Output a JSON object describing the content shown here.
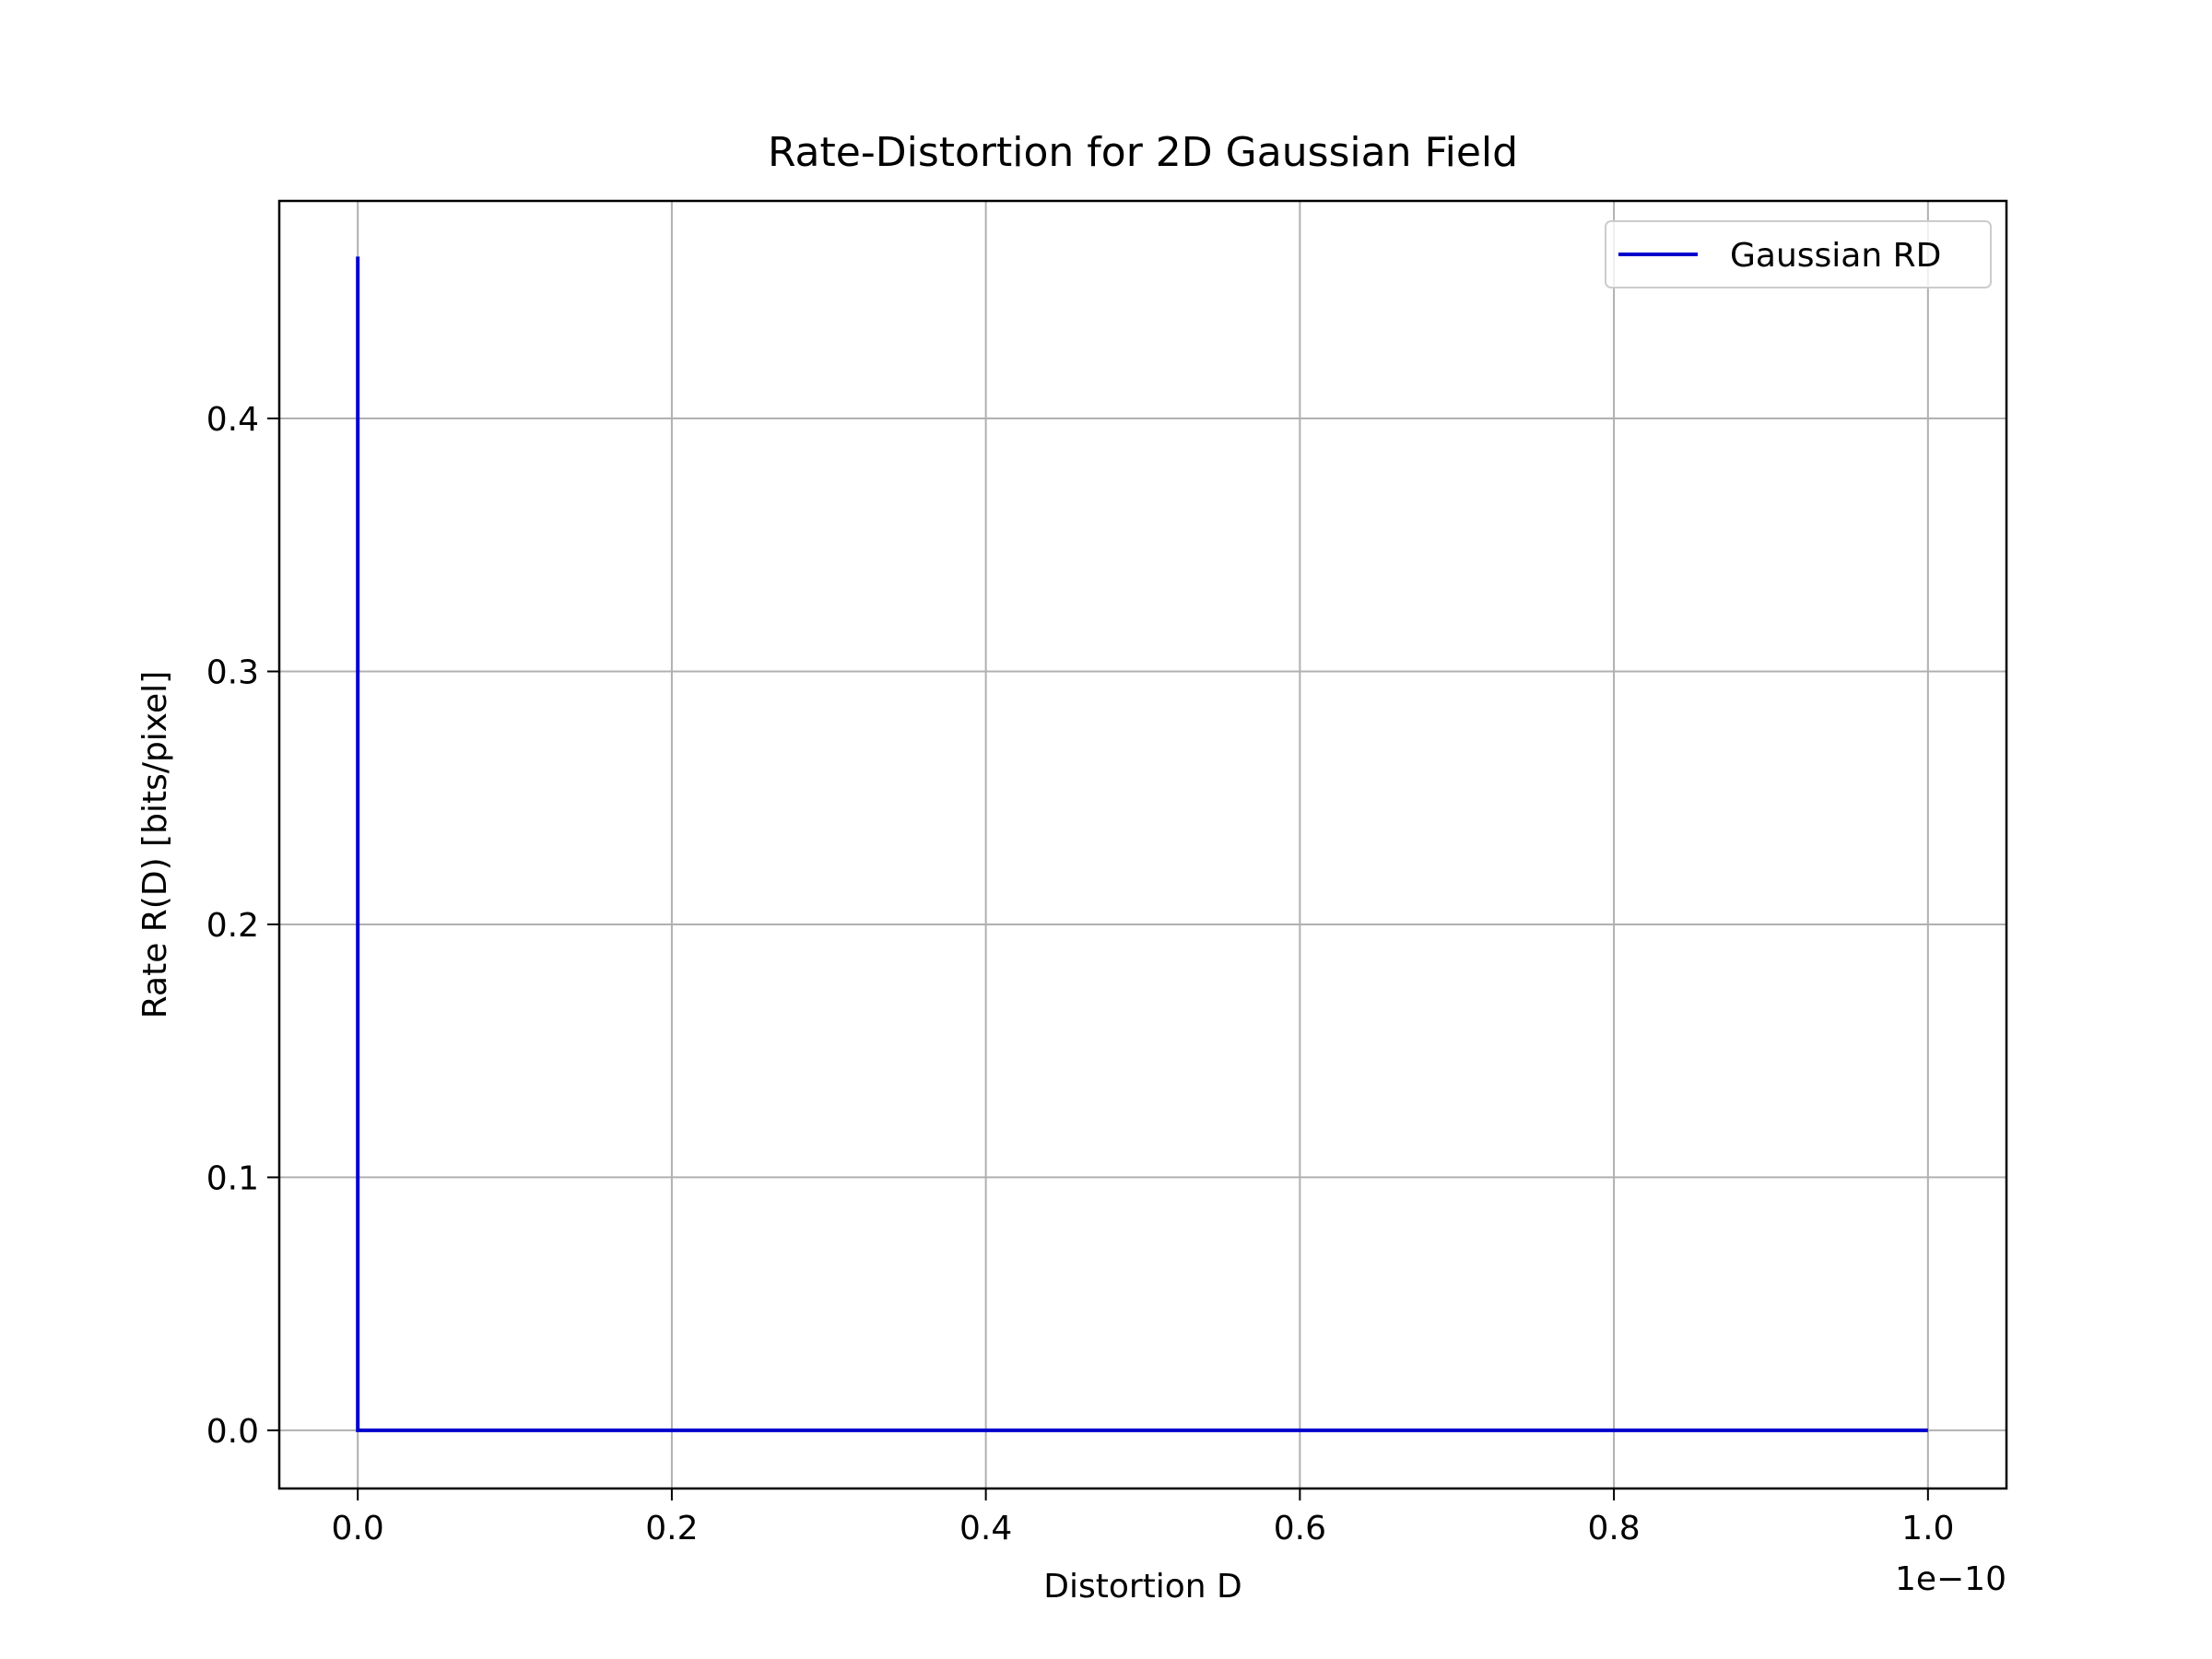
{
  "chart_data": {
    "type": "line",
    "title": "Rate-Distortion for 2D Gaussian Field",
    "xlabel": "Distortion D",
    "ylabel": "Rate R(D) [bits/pixel]",
    "x_offset_label": "1e−10",
    "xlim": [
      -0.05,
      1.05
    ],
    "ylim": [
      -0.023,
      0.486
    ],
    "x_ticks": [
      0.0,
      0.2,
      0.4,
      0.6,
      0.8,
      1.0
    ],
    "x_tick_labels": [
      "0.0",
      "0.2",
      "0.4",
      "0.6",
      "0.8",
      "1.0"
    ],
    "y_ticks": [
      0.0,
      0.1,
      0.2,
      0.3,
      0.4
    ],
    "y_tick_labels": [
      "0.0",
      "0.1",
      "0.2",
      "0.3",
      "0.4"
    ],
    "grid": true,
    "legend_position": "top-right",
    "series": [
      {
        "name": "Gaussian RD",
        "color": "#0000cc",
        "x": [
          0.0,
          0.0,
          0.0,
          0.2,
          0.4,
          0.6,
          0.8,
          1.0
        ],
        "y": [
          0.464,
          0.05,
          0.0,
          0.0,
          0.0,
          0.0,
          0.0,
          0.0
        ]
      }
    ]
  }
}
